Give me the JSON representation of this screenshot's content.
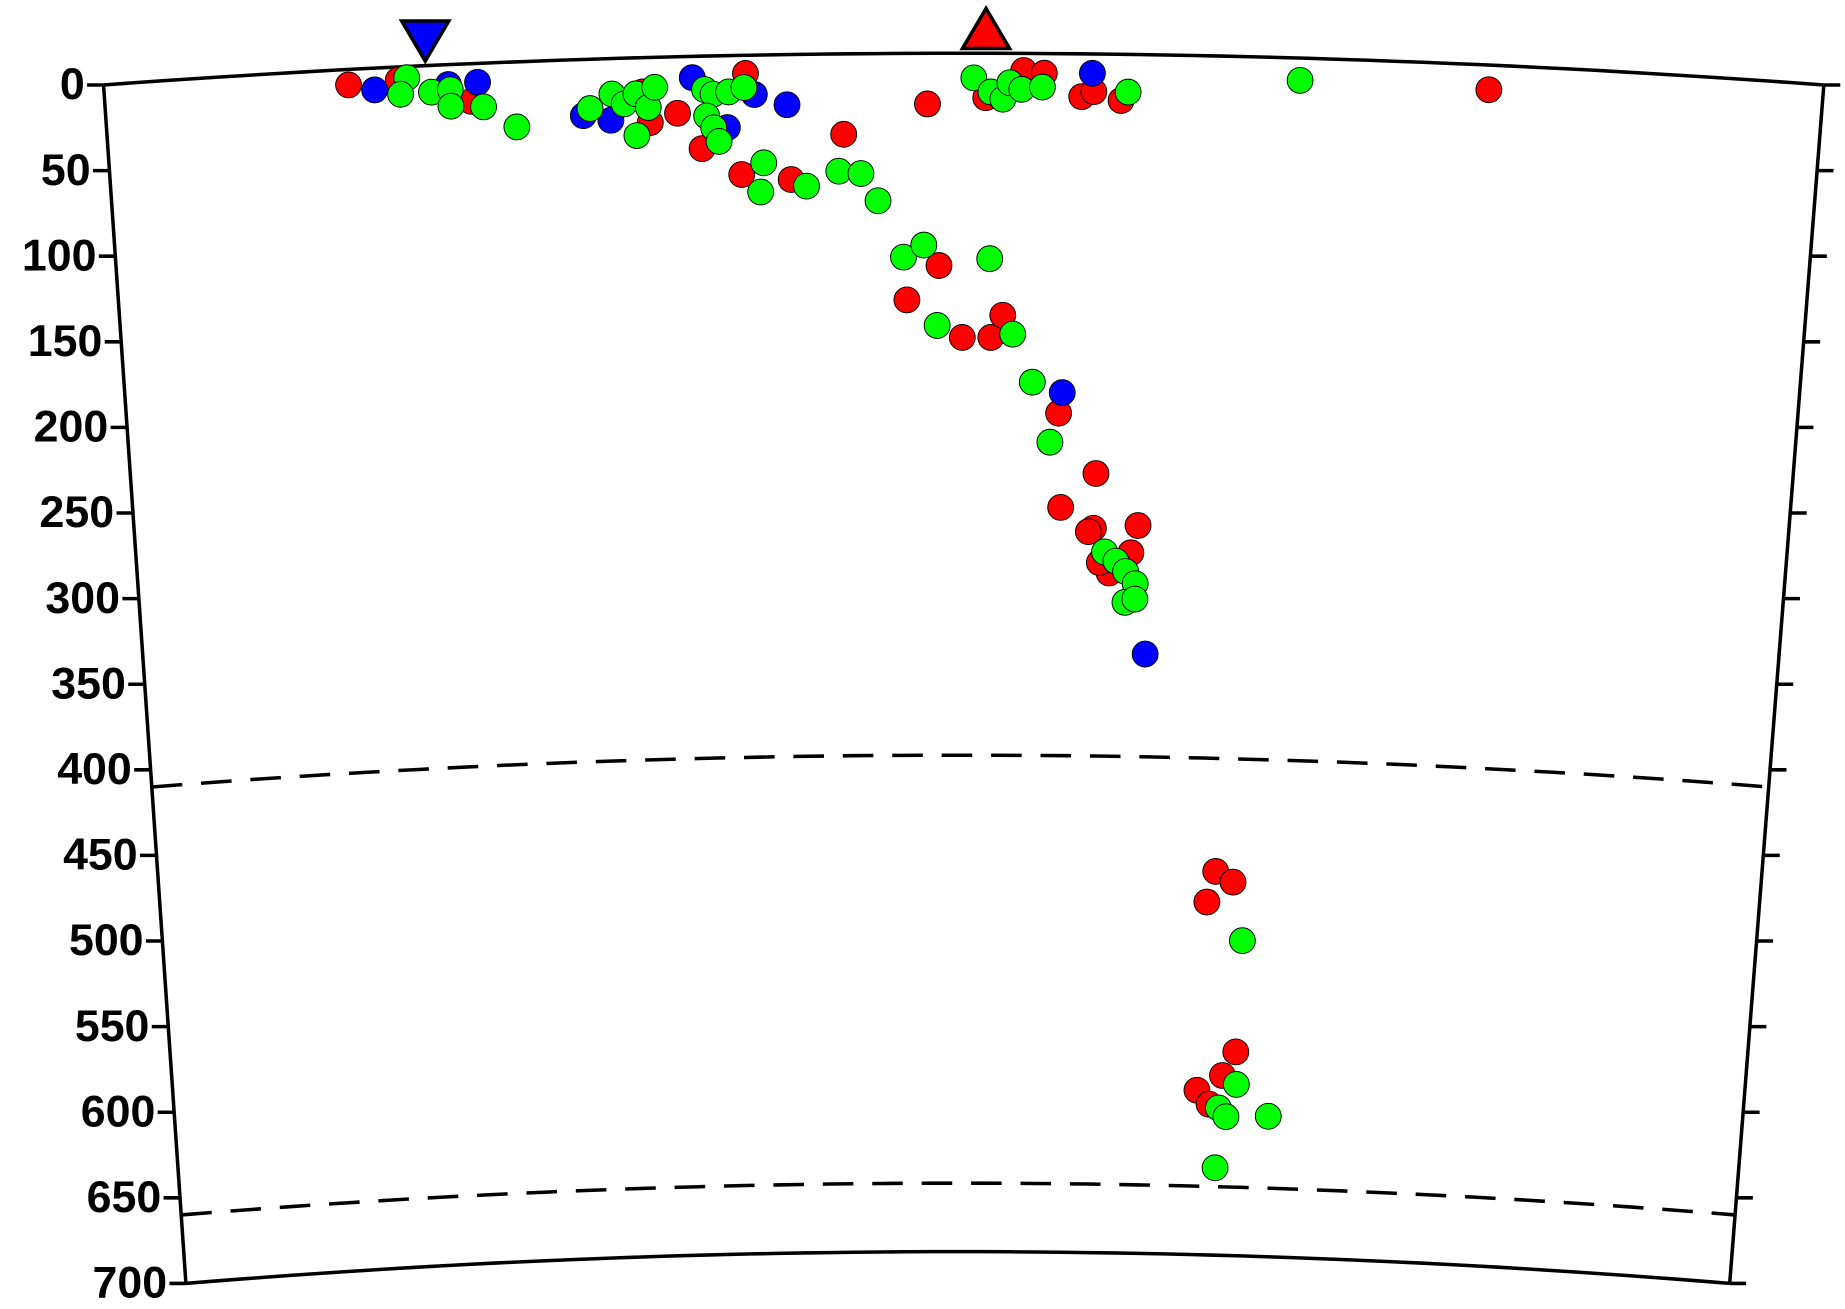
{
  "chart_data": {
    "type": "scatter",
    "xlim": [
      0,
      100
    ],
    "ylim": [
      0,
      700
    ],
    "yticks": [
      0,
      50,
      100,
      150,
      200,
      250,
      300,
      350,
      400,
      450,
      500,
      550,
      600,
      650,
      700
    ],
    "y_inverted": true,
    "discontinuities": [
      410,
      660
    ],
    "markers": [
      {
        "shape": "triangle-down",
        "color": "#0000ff",
        "x": 18.7
      },
      {
        "shape": "triangle-up",
        "color": "#ff0000",
        "x": 51.3
      }
    ],
    "series": [
      {
        "color": "#ff0000",
        "x": [
          14.2,
          17.1,
          21.3,
          31.3,
          33.3,
          31.7,
          34.7,
          37.3,
          37,
          39.9,
          43,
          47.9,
          51.3,
          53.5,
          54.7,
          56.9,
          57.6,
          59.2,
          80.6,
          48.6,
          46.7,
          50,
          51.7,
          52.4,
          55.8,
          58.1,
          56,
          58,
          60.7,
          60.3,
          59,
          58.4,
          57.7,
          66,
          65.5,
          67.1,
          67.6,
          66.8,
          65.2,
          66
        ],
        "values": [
          9,
          7.7,
          22,
          20,
          33,
          38,
          54,
          10.6,
          69.6,
          73,
          47,
          29.6,
          26,
          10,
          11.5,
          25,
          22,
          27,
          14.4,
          124,
          144,
          166,
          166,
          153,
          210,
          245,
          265,
          277,
          275,
          291,
          303,
          297,
          279,
          476,
          494,
          482,
          581,
          595,
          604,
          612
        ]
      },
      {
        "color": "#0000ff",
        "x": [
          15.7,
          21.7,
          20,
          27.8,
          29.4,
          34.2,
          36.2,
          37.8,
          39.7,
          57.5,
          56,
          61.3
        ],
        "values": [
          12.7,
          11,
          11.6,
          32.8,
          36,
          12.4,
          42,
          23,
          29.3,
          11.3,
          198,
          350
        ]
      },
      {
        "color": "#00ff00",
        "x": [
          17.6,
          17.2,
          19,
          20.1,
          20.1,
          22,
          23.9,
          28.2,
          29.5,
          30.2,
          30.9,
          31.6,
          30.9,
          32,
          34.9,
          35.4,
          36.3,
          37.2,
          35,
          35.4,
          35.7,
          38.3,
          38.1,
          40.8,
          42.7,
          44,
          45,
          46.5,
          47.7,
          51.6,
          48.5,
          53,
          54.2,
          55.3,
          58.7,
          59.4,
          60,
          60.6,
          60,
          60.6,
          67.8,
          67.7,
          66.6,
          67.1,
          69.8,
          66.5,
          50.6,
          51.6,
          52.3,
          52.7,
          53.4,
          54.6,
          59.6,
          69.6
        ],
        "values": [
          6.5,
          16,
          15.6,
          14.7,
          24.3,
          25.5,
          38,
          28.8,
          20.7,
          26.7,
          21,
          29.2,
          45.4,
          17.5,
          19.5,
          22.3,
          21.2,
          18.8,
          35,
          42,
          50,
          63,
          80,
          77,
          68.5,
          70,
          86,
          119,
          112,
          120,
          159,
          164,
          192,
          227,
          290.7,
          296,
          302,
          309,
          320,
          318,
          516,
          600,
          614,
          619,
          618,
          649,
          14.4,
          22.6,
          26.8,
          17.2,
          21,
          19.6,
          22,
          13
        ]
      }
    ]
  }
}
